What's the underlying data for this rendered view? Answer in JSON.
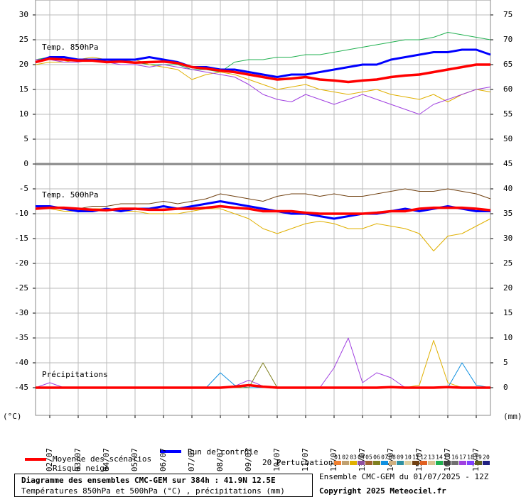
{
  "chart_data": {
    "type": "line",
    "panel_labels": [
      "Temp. 850hPa",
      "Temp. 500hPa",
      "Précipitations"
    ],
    "y_unit": "(°C)",
    "y2_unit": "(mm)",
    "x": [
      0,
      12,
      24,
      36,
      48,
      60,
      72,
      84,
      96,
      108,
      120,
      132,
      144,
      156,
      168,
      180,
      192,
      204,
      216,
      228,
      240,
      252,
      264,
      276,
      288,
      300,
      312,
      324,
      336,
      348,
      360,
      372,
      384
    ],
    "xlim": [
      0,
      384
    ],
    "xticks": [
      {
        "value": 12,
        "label": "02/07"
      },
      {
        "value": 36,
        "label": "03/07"
      },
      {
        "value": 60,
        "label": "04/07"
      },
      {
        "value": 84,
        "label": "05/07"
      },
      {
        "value": 108,
        "label": "06/07"
      },
      {
        "value": 132,
        "label": "07/07"
      },
      {
        "value": 156,
        "label": "08/07"
      },
      {
        "value": 180,
        "label": "09/07"
      },
      {
        "value": 204,
        "label": "10/07"
      },
      {
        "value": 228,
        "label": "11/07"
      },
      {
        "value": 252,
        "label": "12/07"
      },
      {
        "value": 276,
        "label": "13/07"
      },
      {
        "value": 300,
        "label": "14/07"
      },
      {
        "value": 324,
        "label": "15/07"
      },
      {
        "value": 348,
        "label": "16/07"
      },
      {
        "value": 372,
        "label": "17/07"
      }
    ],
    "ylim": [
      -50.57,
      33
    ],
    "yticks": [
      30,
      25,
      20,
      15,
      10,
      5,
      0,
      -5,
      -10,
      -15,
      -20,
      -25,
      -30,
      -35,
      -40,
      -45
    ],
    "y2lim": [
      -5.57,
      78
    ],
    "y2ticks": [
      75,
      70,
      65,
      60,
      55,
      50,
      45,
      40,
      35,
      30,
      25,
      20,
      15,
      10,
      5,
      0
    ],
    "grid": true,
    "series": [
      {
        "name": "Moyenne des scénarios",
        "color": "#ff0000",
        "values": [
          20.5,
          21.2,
          21,
          20.8,
          20.8,
          20.5,
          20.6,
          20.4,
          20.5,
          20.6,
          20.3,
          19.5,
          19.2,
          18.8,
          18.5,
          18,
          17.5,
          17,
          17.2,
          17.5,
          17,
          16.8,
          16.5,
          16.8,
          17,
          17.5,
          17.8,
          18,
          18.5,
          19,
          19.5,
          20,
          20
        ]
      },
      {
        "name": "Run de contrôle",
        "color": "#0000ff",
        "values": [
          20.5,
          21.5,
          21.5,
          21,
          21,
          21,
          21,
          21,
          21.5,
          21,
          20.5,
          19.5,
          19.5,
          19,
          19,
          18.5,
          18,
          17.5,
          18,
          18,
          18.5,
          19,
          19.5,
          20,
          20,
          21,
          21.5,
          22,
          22.5,
          22.5,
          23,
          23,
          22
        ]
      },
      {
        "name": "14",
        "color": "#20b050",
        "values": [
          21,
          21.5,
          21,
          21,
          21,
          20.5,
          21,
          20.5,
          20,
          20,
          20,
          19,
          19,
          18.5,
          20.5,
          21,
          21,
          21.5,
          21.5,
          22,
          22,
          22.5,
          23,
          23.5,
          24,
          24.5,
          25,
          25,
          25.5,
          26.5,
          26,
          25.5,
          25
        ]
      },
      {
        "name": "03",
        "color": "#e0b000",
        "values": [
          20,
          20.5,
          20.5,
          21,
          21.5,
          21,
          20.5,
          21,
          20,
          19.5,
          19,
          17,
          18,
          18.5,
          18,
          17,
          16,
          15,
          15.5,
          16,
          15,
          14.5,
          14,
          14.5,
          15,
          14,
          13.5,
          13,
          14,
          12.5,
          14,
          15,
          14.5
        ]
      },
      {
        "name": "17",
        "color": "#a040e0",
        "values": [
          21,
          21,
          20.5,
          20.5,
          21,
          20.5,
          20,
          20,
          19.5,
          20,
          19.5,
          19,
          18.5,
          18,
          17.5,
          16,
          14,
          13,
          12.5,
          14,
          13,
          12,
          13,
          14,
          13,
          12,
          11,
          10,
          12,
          13,
          14,
          15,
          15.5
        ]
      },
      {
        "name": "Moyenne des scénarios",
        "color": "#ff0000",
        "values": [
          -9,
          -8.8,
          -8.8,
          -9,
          -9.2,
          -9.3,
          -9,
          -9,
          -9.2,
          -9.2,
          -9,
          -9,
          -8.8,
          -8.5,
          -8.8,
          -9,
          -9.5,
          -9.5,
          -9.5,
          -9.8,
          -10,
          -10,
          -10,
          -10,
          -9.8,
          -9.5,
          -9.5,
          -9,
          -8.8,
          -8.8,
          -8.8,
          -9,
          -9.3
        ]
      },
      {
        "name": "Run de contrôle",
        "color": "#0000ff",
        "values": [
          -8.5,
          -8.5,
          -9,
          -9.5,
          -9.5,
          -9,
          -9.5,
          -9,
          -9,
          -8.5,
          -9,
          -8.5,
          -8,
          -7.5,
          -8,
          -8.5,
          -9,
          -9.5,
          -10,
          -10,
          -10.5,
          -11,
          -10.5,
          -10,
          -10,
          -9.5,
          -9,
          -9.5,
          -9,
          -8.5,
          -9,
          -9.5,
          -9.5
        ]
      },
      {
        "name": "03",
        "color": "#e0b000",
        "values": [
          -9,
          -9,
          -9.5,
          -9.5,
          -9,
          -9,
          -9.5,
          -9.5,
          -10,
          -10,
          -10,
          -9.5,
          -9,
          -9,
          -10,
          -11,
          -13,
          -14,
          -13,
          -12,
          -11.5,
          -12,
          -13,
          -13,
          -12,
          -12.5,
          -13,
          -14,
          -17.5,
          -14.5,
          -14,
          -12.5,
          -11
        ]
      },
      {
        "name": "11",
        "color": "#704010",
        "values": [
          -9,
          -8.5,
          -9,
          -9,
          -8.5,
          -8.5,
          -8,
          -8,
          -8,
          -7.5,
          -8,
          -7.5,
          -7,
          -6,
          -6.5,
          -7,
          -7.5,
          -6.5,
          -6,
          -6,
          -6.5,
          -6,
          -6.5,
          -6.5,
          -6,
          -5.5,
          -5,
          -5.5,
          -5.5,
          -5,
          -5.5,
          -6,
          -7
        ]
      },
      {
        "name": "Moyenne des scénarios",
        "color": "#ff0000",
        "axis": "y2",
        "values": [
          0,
          0,
          0,
          0,
          0,
          0,
          0,
          0,
          0,
          0,
          0,
          0,
          0,
          0,
          0.2,
          0.5,
          0.2,
          0,
          0,
          0,
          0,
          0,
          0,
          0,
          0,
          0.1,
          0,
          0,
          0,
          0.1,
          0,
          0,
          0
        ]
      },
      {
        "name": "17",
        "color": "#a040e0",
        "axis": "y2",
        "values": [
          0,
          1,
          0,
          0,
          0,
          0,
          0,
          0,
          0,
          0,
          0,
          0,
          0,
          0,
          0.3,
          1.5,
          0.3,
          0,
          0,
          0,
          0,
          4,
          10,
          1,
          3,
          2,
          0,
          0,
          0,
          0,
          0,
          0,
          0
        ]
      },
      {
        "name": "03",
        "color": "#e0b000",
        "axis": "y2",
        "values": [
          0,
          0,
          0,
          0,
          0,
          0,
          0,
          0,
          0,
          0,
          0,
          0,
          0,
          0,
          0,
          0,
          0,
          0,
          0,
          0,
          0,
          0,
          0,
          0,
          0,
          0,
          0,
          0.5,
          9.5,
          1,
          0,
          0,
          0
        ]
      },
      {
        "name": "07",
        "color": "#1090e0",
        "axis": "y2",
        "values": [
          0,
          0,
          0,
          0,
          0,
          0,
          0,
          0,
          0,
          0,
          0,
          0,
          0,
          3,
          0.5,
          0,
          0,
          0,
          0,
          0,
          0,
          0,
          0,
          0,
          0,
          0,
          0,
          0,
          0,
          0,
          5,
          0.5,
          0
        ]
      },
      {
        "name": "06",
        "color": "#808020",
        "axis": "y2",
        "values": [
          0,
          0,
          0,
          0,
          0,
          0,
          0,
          0,
          0,
          0,
          0,
          0,
          0,
          0,
          0,
          0,
          5,
          0,
          0,
          0,
          0,
          0,
          0,
          0,
          0,
          0,
          0,
          0,
          0,
          0,
          0,
          0,
          0
        ]
      }
    ],
    "snow_risk_label": "Risque neige",
    "perturbations_label": "20 Perturbations",
    "perturbations": [
      {
        "name": "01",
        "color": "#f08030"
      },
      {
        "name": "02",
        "color": "#c0a070"
      },
      {
        "name": "03",
        "color": "#e0b000"
      },
      {
        "name": "04",
        "color": "#9050a0"
      },
      {
        "name": "05",
        "color": "#a06030"
      },
      {
        "name": "06",
        "color": "#808020"
      },
      {
        "name": "07",
        "color": "#1090e0"
      },
      {
        "name": "08",
        "color": "#d0b080"
      },
      {
        "name": "09",
        "color": "#3090a0"
      },
      {
        "name": "10",
        "color": "#e0d0a0"
      },
      {
        "name": "11",
        "color": "#704010"
      },
      {
        "name": "12",
        "color": "#e06020"
      },
      {
        "name": "13",
        "color": "#d8c090"
      },
      {
        "name": "14",
        "color": "#20b050"
      },
      {
        "name": "15",
        "color": "#404040"
      },
      {
        "name": "16",
        "color": "#707070"
      },
      {
        "name": "17",
        "color": "#a040e0"
      },
      {
        "name": "18",
        "color": "#8040ff"
      },
      {
        "name": "19",
        "color": "#606020"
      },
      {
        "name": "20",
        "color": "#202080"
      }
    ],
    "title": "Diagramme des ensembles CMC-GEM sur 384h : 41.9N 12.5E",
    "subtitle": "Températures 850hPa et 500hPa (°C) , précipitations (mm)",
    "run_info": "Ensemble CMC-GEM du 01/07/2025 - 12Z",
    "copyright": "Copyright 2025 Meteociel.fr"
  }
}
